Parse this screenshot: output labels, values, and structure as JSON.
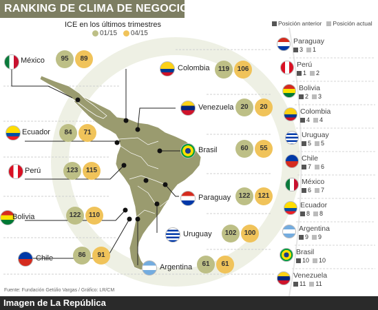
{
  "header": {
    "title": "RANKING DE CLIMA DE NEGOCIOS"
  },
  "subtitle": "ICE en los últimos trimestres",
  "chart_legend": {
    "old_label": "01/15",
    "new_label": "04/15",
    "old_color": "#bdbf86",
    "new_color": "#f0c35a"
  },
  "rank_legend": {
    "prev_label": "Posición anterior",
    "curr_label": "Posición actual",
    "prev_color": "#555555",
    "curr_color": "#bbbbbb"
  },
  "chart_data": {
    "type": "bar",
    "title": "ICE en los últimos trimestres",
    "categories": [
      "México",
      "Colombia",
      "Venezuela",
      "Ecuador",
      "Brasil",
      "Perú",
      "Paraguay",
      "Bolivia",
      "Uruguay",
      "Chile",
      "Argentina"
    ],
    "series": [
      {
        "name": "01/15",
        "values": [
          95,
          119,
          20,
          84,
          60,
          123,
          122,
          122,
          102,
          86,
          61
        ]
      },
      {
        "name": "04/15",
        "values": [
          89,
          106,
          20,
          71,
          55,
          115,
          121,
          110,
          100,
          91,
          61
        ]
      }
    ]
  },
  "countries": [
    {
      "name": "México",
      "v1": "95",
      "v2": "89"
    },
    {
      "name": "Colombia",
      "v1": "119",
      "v2": "106"
    },
    {
      "name": "Venezuela",
      "v1": "20",
      "v2": "20"
    },
    {
      "name": "Ecuador",
      "v1": "84",
      "v2": "71"
    },
    {
      "name": "Brasil",
      "v1": "60",
      "v2": "55"
    },
    {
      "name": "Perú",
      "v1": "123",
      "v2": "115"
    },
    {
      "name": "Paraguay",
      "v1": "122",
      "v2": "121"
    },
    {
      "name": "Bolivia",
      "v1": "122",
      "v2": "110"
    },
    {
      "name": "Uruguay",
      "v1": "102",
      "v2": "100"
    },
    {
      "name": "Chile",
      "v1": "86",
      "v2": "91"
    },
    {
      "name": "Argentina",
      "v1": "61",
      "v2": "61"
    }
  ],
  "ranking": [
    {
      "name": "Paraguay",
      "prev": "3",
      "curr": "1"
    },
    {
      "name": "Perú",
      "prev": "1",
      "curr": "2"
    },
    {
      "name": "Bolivia",
      "prev": "2",
      "curr": "3"
    },
    {
      "name": "Colombia",
      "prev": "4",
      "curr": "4"
    },
    {
      "name": "Uruguay",
      "prev": "5",
      "curr": "5"
    },
    {
      "name": "Chile",
      "prev": "7",
      "curr": "6"
    },
    {
      "name": "México",
      "prev": "6",
      "curr": "7"
    },
    {
      "name": "Ecuador",
      "prev": "8",
      "curr": "8"
    },
    {
      "name": "Argentina",
      "prev": "9",
      "curr": "9"
    },
    {
      "name": "Brasil",
      "prev": "10",
      "curr": "10"
    },
    {
      "name": "Venezuela",
      "prev": "11",
      "curr": "11"
    }
  ],
  "source": "Fuente: Fundación Getúlio Vargas / Gráfico: LR/CM",
  "footer": {
    "text": "Imagen de La República"
  }
}
